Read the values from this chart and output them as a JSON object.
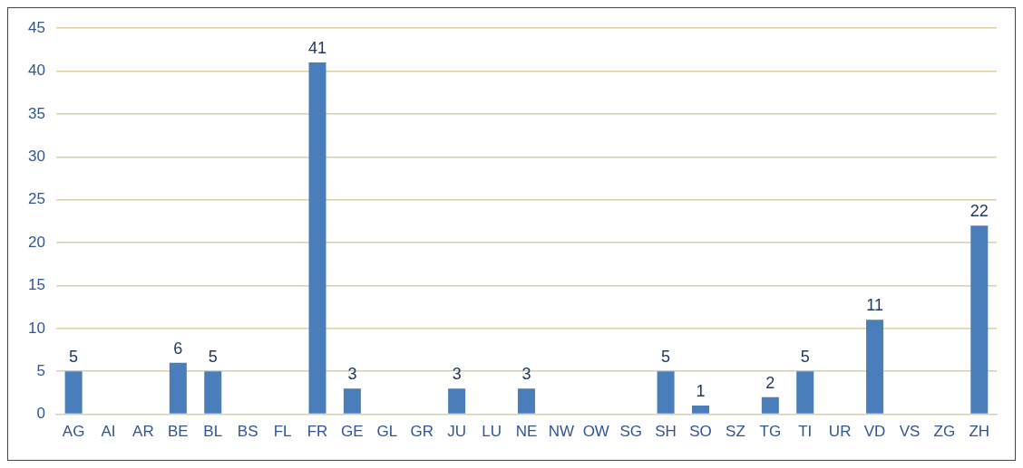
{
  "chart_data": {
    "type": "bar",
    "categories": [
      "AG",
      "AI",
      "AR",
      "BE",
      "BL",
      "BS",
      "FL",
      "FR",
      "GE",
      "GL",
      "GR",
      "JU",
      "LU",
      "NE",
      "NW",
      "OW",
      "SG",
      "SH",
      "SO",
      "SZ",
      "TG",
      "TI",
      "UR",
      "VD",
      "VS",
      "ZG",
      "ZH"
    ],
    "values": [
      5,
      0,
      0,
      6,
      5,
      0,
      0,
      41,
      3,
      0,
      0,
      3,
      0,
      3,
      0,
      0,
      0,
      5,
      1,
      0,
      2,
      5,
      0,
      11,
      0,
      0,
      22
    ],
    "value_labels": [
      "5",
      null,
      null,
      "6",
      "5",
      null,
      null,
      "41",
      "3",
      null,
      null,
      "3",
      null,
      "3",
      null,
      null,
      null,
      "5",
      "1",
      null,
      "2",
      "5",
      null,
      "11",
      null,
      null,
      "22"
    ],
    "color": "#4a7ebb",
    "ylim": [
      0,
      45
    ],
    "yticks": [
      0,
      5,
      10,
      15,
      20,
      25,
      30,
      35,
      40,
      45
    ],
    "grid": "y",
    "legend": false
  }
}
